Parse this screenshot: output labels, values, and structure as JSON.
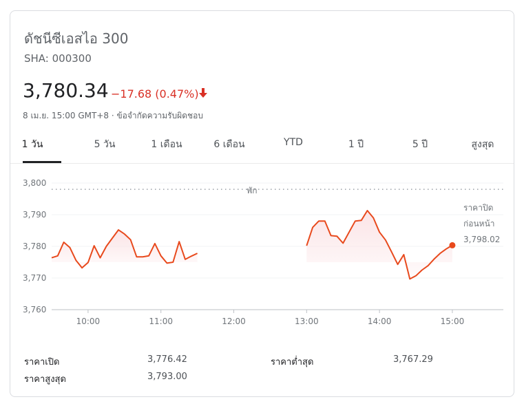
{
  "header": {
    "name": "ดัชนีซีเอสไอ 300",
    "ticker": "SHA: 000300",
    "price": "3,780.34",
    "change": "−17.68 (0.47%)",
    "change_direction": "down-arrow-icon",
    "timestamp": "8 เม.ย. 15:00 GMT+8 · ข้อจำกัดความรับผิดชอบ"
  },
  "tabs": [
    {
      "label": "1 วัน",
      "active": true
    },
    {
      "label": "5 วัน",
      "active": false
    },
    {
      "label": "1 เดือน",
      "active": false
    },
    {
      "label": "6 เดือน",
      "active": false
    },
    {
      "label": "YTD",
      "active": false
    },
    {
      "label": "1 ปี",
      "active": false
    },
    {
      "label": "5 ปี",
      "active": false
    },
    {
      "label": "สูงสุด",
      "active": false
    }
  ],
  "chart_data": {
    "type": "line",
    "y_ticks": [
      "3,800",
      "3,790",
      "3,780",
      "3,770",
      "3,760"
    ],
    "y_tick_values": [
      3800,
      3790,
      3780,
      3770,
      3760
    ],
    "x_ticks": [
      "10:00",
      "11:00",
      "12:00",
      "13:00",
      "14:00",
      "15:00"
    ],
    "x_tick_values": [
      "10:00",
      "11:00",
      "12:00",
      "13:00",
      "14:00",
      "15:00"
    ],
    "x_range": [
      "09:30",
      "15:42"
    ],
    "ylim": [
      3760,
      3800
    ],
    "break_label": "พัก",
    "reference_label": [
      "ราคาปิด",
      "ก่อนหน้า",
      "3,798.02"
    ],
    "reference_value": 3798.02,
    "line_color": "#e8491c",
    "fill_color": "#fbe4e6",
    "segments": [
      [
        [
          "09:30",
          3776.4
        ],
        [
          "09:35",
          3777.0
        ],
        [
          "09:40",
          3781.3
        ],
        [
          "09:45",
          3779.6
        ],
        [
          "09:50",
          3775.6
        ],
        [
          "09:55",
          3773.2
        ],
        [
          "10:00",
          3774.9
        ],
        [
          "10:05",
          3780.2
        ],
        [
          "10:10",
          3776.4
        ],
        [
          "10:15",
          3780.0
        ],
        [
          "10:20",
          3782.6
        ],
        [
          "10:25",
          3785.2
        ],
        [
          "10:30",
          3783.9
        ],
        [
          "10:35",
          3782.1
        ],
        [
          "10:40",
          3776.7
        ],
        [
          "10:45",
          3776.7
        ],
        [
          "10:50",
          3777.0
        ],
        [
          "10:55",
          3780.9
        ],
        [
          "11:00",
          3777.0
        ],
        [
          "11:05",
          3774.7
        ],
        [
          "11:10",
          3775.0
        ],
        [
          "11:15",
          3781.5
        ],
        [
          "11:20",
          3775.9
        ],
        [
          "11:25",
          3776.9
        ],
        [
          "11:30",
          3777.8
        ]
      ],
      [
        [
          "13:00",
          3780.2
        ],
        [
          "13:05",
          3786.0
        ],
        [
          "13:10",
          3788.0
        ],
        [
          "13:15",
          3788.0
        ],
        [
          "13:20",
          3783.4
        ],
        [
          "13:25",
          3783.2
        ],
        [
          "13:30",
          3781.0
        ],
        [
          "13:35",
          3784.5
        ],
        [
          "13:40",
          3788.0
        ],
        [
          "13:45",
          3788.2
        ],
        [
          "13:50",
          3791.3
        ],
        [
          "13:55",
          3789.0
        ],
        [
          "14:00",
          3784.5
        ],
        [
          "14:05",
          3782.0
        ],
        [
          "14:10",
          3778.2
        ],
        [
          "14:15",
          3774.3
        ],
        [
          "14:20",
          3777.4
        ],
        [
          "14:25",
          3769.7
        ],
        [
          "14:30",
          3770.7
        ],
        [
          "14:35",
          3772.5
        ],
        [
          "14:40",
          3773.9
        ],
        [
          "14:45",
          3776.0
        ],
        [
          "14:50",
          3777.8
        ],
        [
          "14:55",
          3779.2
        ],
        [
          "15:00",
          3780.34
        ]
      ]
    ],
    "last_point": [
      "15:00",
      3780.34
    ]
  },
  "stats": [
    {
      "label": "ราคาเปิด",
      "value": "3,776.42"
    },
    {
      "label": "ราคาสูงสุด",
      "value": "3,793.00"
    },
    {
      "label": "ราคาต่ำสุด",
      "value": "3,767.29"
    }
  ]
}
